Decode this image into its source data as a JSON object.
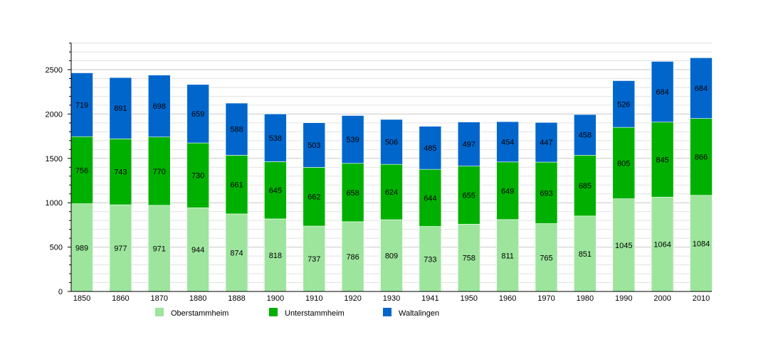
{
  "chart_data": {
    "type": "bar",
    "stacked": true,
    "categories": [
      "1850",
      "1860",
      "1870",
      "1880",
      "1888",
      "1900",
      "1910",
      "1920",
      "1930",
      "1941",
      "1950",
      "1960",
      "1970",
      "1980",
      "1990",
      "2000",
      "2010"
    ],
    "series": [
      {
        "name": "Oberstammheim",
        "color": "#9de59d",
        "values": [
          989,
          977,
          971,
          944,
          874,
          818,
          737,
          786,
          809,
          733,
          758,
          811,
          765,
          851,
          1045,
          1064,
          1084
        ]
      },
      {
        "name": "Unterstammheim",
        "color": "#00b000",
        "values": [
          756,
          743,
          770,
          730,
          661,
          645,
          662,
          658,
          624,
          644,
          655,
          649,
          693,
          685,
          805,
          845,
          866
        ]
      },
      {
        "name": "Waltalingen",
        "color": "#0066cc",
        "values": [
          719,
          691,
          698,
          659,
          588,
          538,
          503,
          539,
          506,
          485,
          497,
          454,
          447,
          458,
          526,
          684,
          684
        ]
      }
    ],
    "yticks": [
      0,
      500,
      1000,
      1500,
      2000,
      2500
    ],
    "ylim": [
      0,
      2800
    ],
    "grid": true,
    "legend": "bottom"
  }
}
